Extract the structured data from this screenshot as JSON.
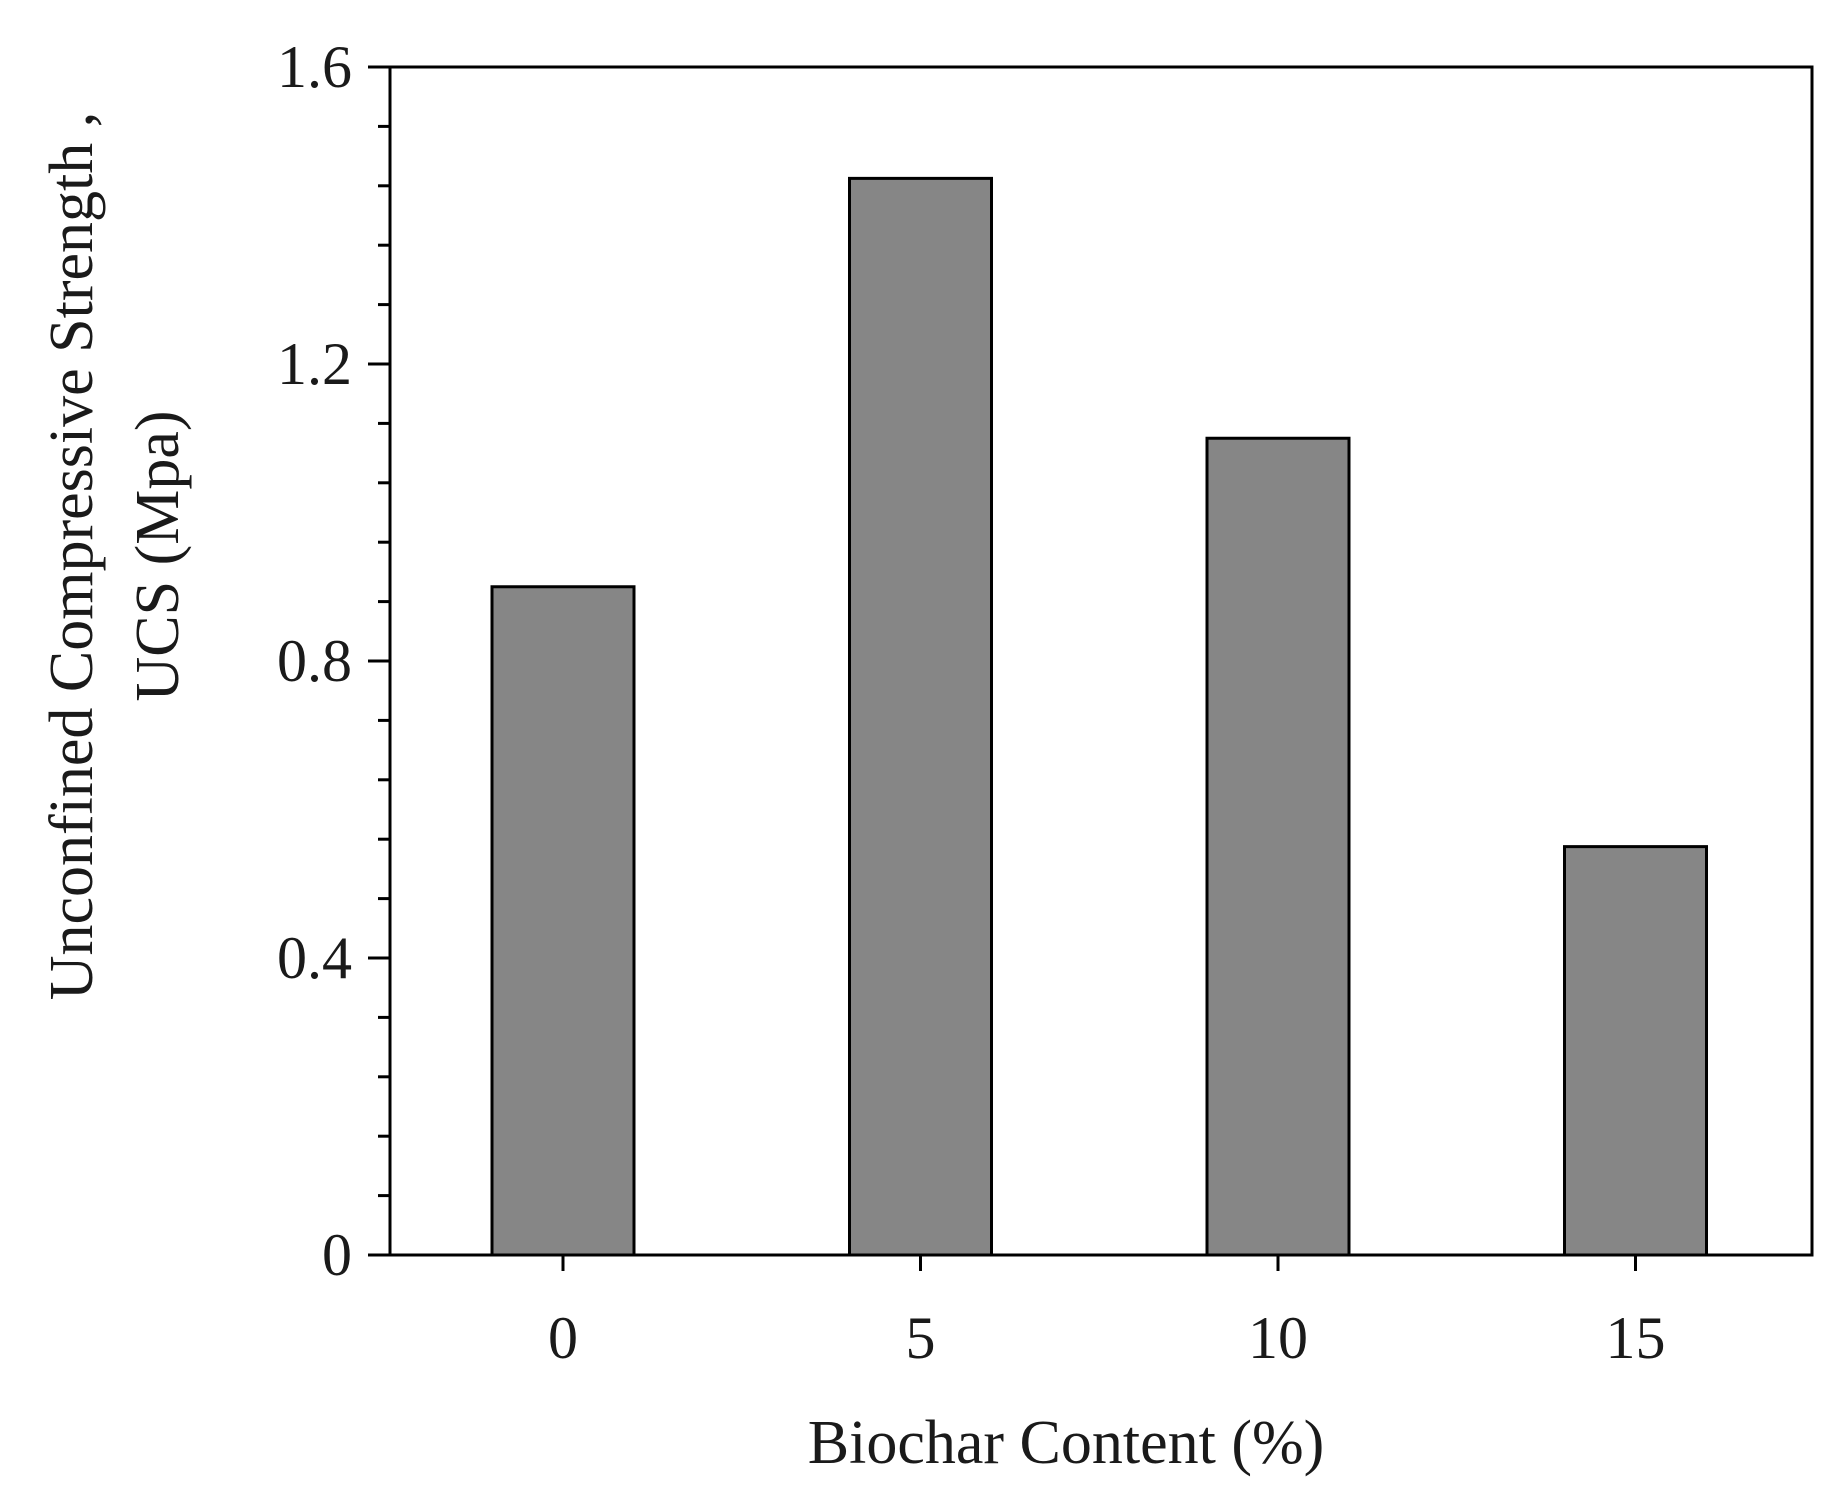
{
  "chart_data": {
    "type": "bar",
    "title": "",
    "xlabel": "Biochar Content (%)",
    "ylabel_line1": "Unconfined Compressive Strength ,",
    "ylabel_line2": "UCS (Mpa)",
    "categories": [
      "0",
      "5",
      "10",
      "15"
    ],
    "values": [
      0.9,
      1.45,
      1.1,
      0.55
    ],
    "ylim": [
      0,
      1.6
    ],
    "yticks": [
      0,
      0.4,
      0.8,
      1.2,
      1.6
    ],
    "ytick_labels": [
      "0",
      "0.4",
      "0.8",
      "1.2",
      "1.6"
    ],
    "minor_ticks_per_major": 4,
    "grid": false,
    "legend": "none",
    "bar_color": "#868686",
    "bar_edge_color": "#000000"
  }
}
